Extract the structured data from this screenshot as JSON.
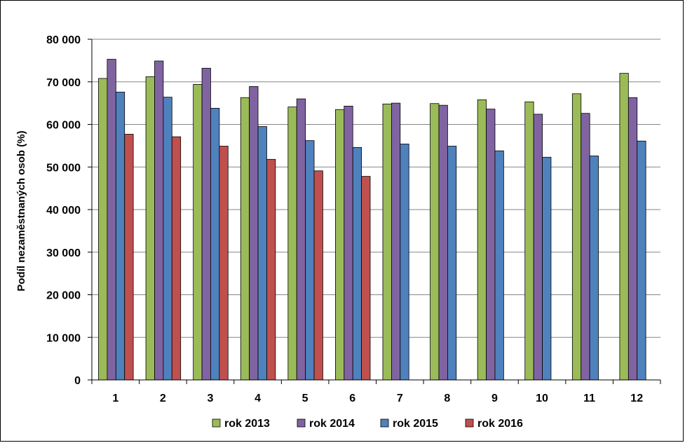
{
  "chart_data": {
    "type": "bar",
    "ylabel": "Podíl nezaměstnaných osob (%)",
    "xlabel": "",
    "categories": [
      "1",
      "2",
      "3",
      "4",
      "5",
      "6",
      "7",
      "8",
      "9",
      "10",
      "11",
      "12"
    ],
    "ylim": [
      0,
      80000
    ],
    "yticks": [
      0,
      10000,
      20000,
      30000,
      40000,
      50000,
      60000,
      70000,
      80000
    ],
    "ytick_labels": [
      "0",
      "10 000",
      "20 000",
      "30 000",
      "40 000",
      "50 000",
      "60 000",
      "70 000",
      "80 000"
    ],
    "grid": true,
    "legend_position": "bottom",
    "series": [
      {
        "name": "rok 2013",
        "color": "#9BBB59",
        "values": [
          70800,
          71200,
          69400,
          66300,
          64100,
          63500,
          64800,
          64900,
          65800,
          65300,
          67200,
          72000
        ]
      },
      {
        "name": "rok 2014",
        "color": "#8064A2",
        "values": [
          75300,
          74900,
          73200,
          68900,
          66000,
          64300,
          65000,
          64500,
          63600,
          62400,
          62600,
          66300
        ]
      },
      {
        "name": "rok 2015",
        "color": "#4F81BD",
        "values": [
          67600,
          66400,
          63800,
          59500,
          56200,
          54600,
          55400,
          54900,
          53800,
          52300,
          52600,
          56100
        ]
      },
      {
        "name": "rok 2016",
        "color": "#C0504D",
        "values": [
          57700,
          57100,
          54900,
          51800,
          49100,
          47800,
          null,
          null,
          null,
          null,
          null,
          null
        ]
      }
    ]
  }
}
